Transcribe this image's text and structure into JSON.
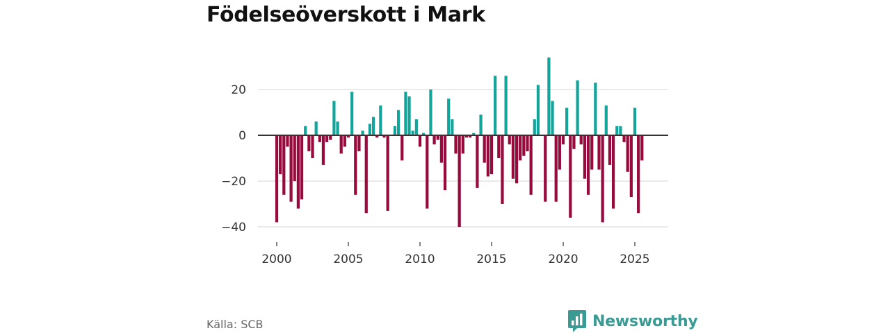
{
  "title": "Födelseöverskott i Mark",
  "source": "Källa: SCB",
  "brand": {
    "name": "Newsworthy",
    "icon": "newsworthy-logo-icon",
    "color": "#3a9a94"
  },
  "colors": {
    "positive": "#13a59b",
    "negative": "#960b3c",
    "grid": "#dddddd",
    "zero_line": "#333333"
  },
  "chart_data": {
    "type": "bar",
    "title": "Födelseöverskott i Mark",
    "xlabel": "",
    "ylabel": "",
    "x_start": 2000,
    "x_step": 0.25,
    "xlim": [
      1999.5,
      2027.0
    ],
    "ylim": [
      -42,
      36
    ],
    "xticks": [
      2000,
      2005,
      2010,
      2015,
      2020,
      2025
    ],
    "yticks": [
      -40,
      -20,
      0,
      20
    ],
    "ytick_labels": [
      "−40",
      "−20",
      "0",
      "20"
    ],
    "grid": true,
    "values": [
      -38,
      -17,
      -26,
      -5,
      -29,
      -20,
      -32,
      -28,
      4,
      -7,
      -10,
      6,
      -3,
      -13,
      -3,
      -2,
      15,
      6,
      -8,
      -5,
      -1,
      19,
      -26,
      -7,
      2,
      -34,
      5,
      8,
      -1,
      13,
      -1,
      -33,
      0,
      4,
      11,
      -11,
      19,
      17,
      2,
      7,
      -5,
      1,
      -32,
      20,
      -4,
      -2,
      -12,
      -24,
      16,
      7,
      -8,
      -40,
      -8,
      -1,
      -1,
      1,
      -23,
      9,
      -12,
      -18,
      -17,
      26,
      -10,
      -30,
      26,
      -4,
      -19,
      -21,
      -11,
      -9,
      -7,
      -26,
      7,
      22,
      0,
      -29,
      34,
      15,
      -29,
      -15,
      -4,
      12,
      -36,
      -6,
      24,
      -4,
      -19,
      -26,
      -15,
      23,
      -15,
      -38,
      13,
      -13,
      -32,
      4,
      4,
      -3,
      -16,
      -27,
      12,
      -34,
      -11
    ]
  }
}
